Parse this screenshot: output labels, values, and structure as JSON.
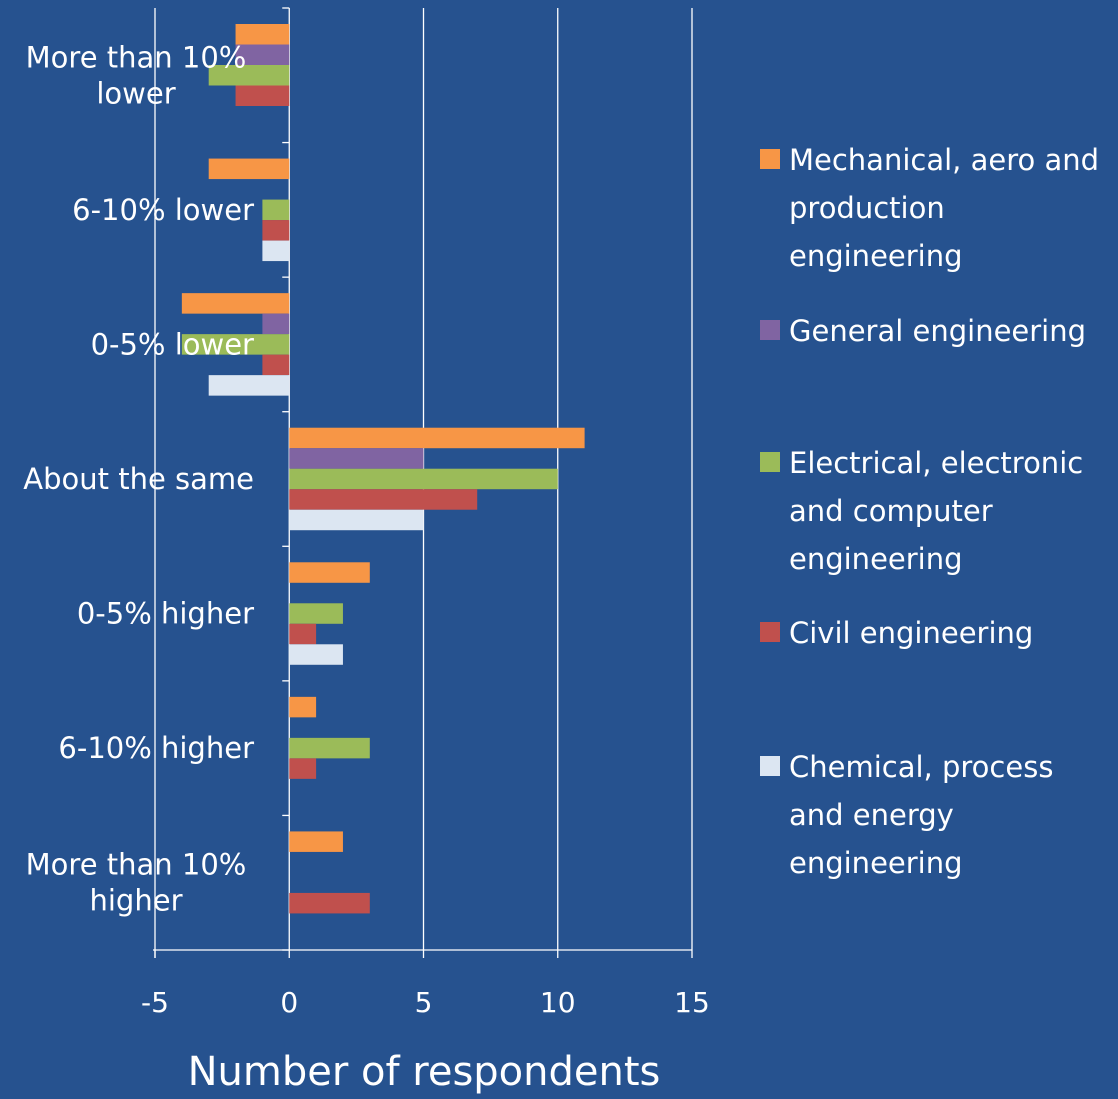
{
  "chart_data": {
    "type": "bar",
    "orientation": "horizontal",
    "title": "",
    "xlabel": "Number of respondents",
    "ylabel": "",
    "xlim": [
      -5,
      15
    ],
    "x_ticks": [
      -5,
      0,
      5,
      10,
      15
    ],
    "grid": true,
    "legend_position": "right",
    "categories": [
      [
        "More than 10%",
        "lower"
      ],
      [
        "6-10% lower"
      ],
      [
        "0-5% lower"
      ],
      [
        "About the same"
      ],
      [
        "0-5% higher"
      ],
      [
        "6-10% higher"
      ],
      [
        "More than 10%",
        "higher"
      ]
    ],
    "series": [
      {
        "name": [
          "Mechanical, aero and",
          "production",
          "engineering"
        ],
        "color": "#F79646",
        "values": [
          -2,
          -3,
          -4,
          11,
          3,
          1,
          2
        ]
      },
      {
        "name": [
          "General engineering"
        ],
        "color": "#8064A2",
        "values": [
          -2,
          0,
          -1,
          5,
          0,
          0,
          0
        ]
      },
      {
        "name": [
          "Electrical, electronic",
          "and computer",
          "engineering"
        ],
        "color": "#9BBB59",
        "values": [
          -3,
          -1,
          -4,
          10,
          2,
          3,
          0
        ]
      },
      {
        "name": [
          "Civil engineering"
        ],
        "color": "#C0504D",
        "values": [
          -2,
          -1,
          -1,
          7,
          1,
          1,
          3
        ]
      },
      {
        "name": [
          "Chemical, process",
          "and energy",
          "engineering"
        ],
        "color": "#DCE6F2",
        "values": [
          0,
          -1,
          -3,
          5,
          2,
          0,
          0
        ]
      }
    ]
  }
}
